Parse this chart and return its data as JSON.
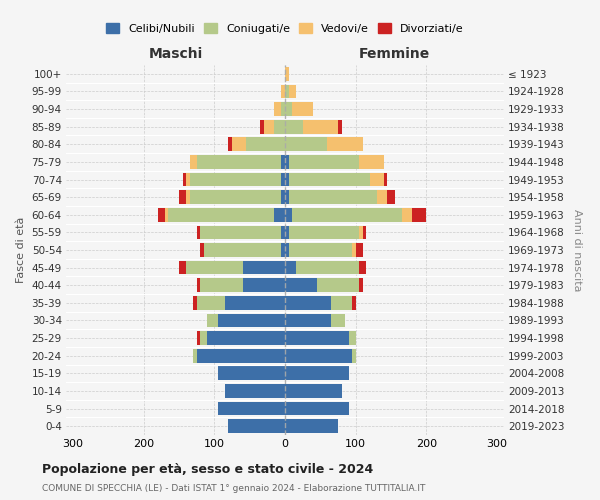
{
  "age_groups": [
    "0-4",
    "5-9",
    "10-14",
    "15-19",
    "20-24",
    "25-29",
    "30-34",
    "35-39",
    "40-44",
    "45-49",
    "50-54",
    "55-59",
    "60-64",
    "65-69",
    "70-74",
    "75-79",
    "80-84",
    "85-89",
    "90-94",
    "95-99",
    "100+"
  ],
  "birth_years": [
    "2019-2023",
    "2014-2018",
    "2009-2013",
    "2004-2008",
    "1999-2003",
    "1994-1998",
    "1989-1993",
    "1984-1988",
    "1979-1983",
    "1974-1978",
    "1969-1973",
    "1964-1968",
    "1959-1963",
    "1954-1958",
    "1949-1953",
    "1944-1948",
    "1939-1943",
    "1934-1938",
    "1929-1933",
    "1924-1928",
    "≤ 1923"
  ],
  "males": {
    "celibe": [
      80,
      95,
      85,
      95,
      125,
      110,
      95,
      85,
      60,
      60,
      5,
      5,
      15,
      5,
      5,
      5,
      0,
      0,
      0,
      0,
      0
    ],
    "coniugato": [
      0,
      0,
      0,
      0,
      5,
      10,
      15,
      40,
      60,
      80,
      110,
      115,
      150,
      130,
      130,
      120,
      55,
      15,
      5,
      0,
      0
    ],
    "vedovo": [
      0,
      0,
      0,
      0,
      0,
      0,
      0,
      0,
      0,
      0,
      0,
      0,
      5,
      5,
      5,
      10,
      20,
      15,
      10,
      5,
      0
    ],
    "divorziato": [
      0,
      0,
      0,
      0,
      0,
      5,
      0,
      5,
      5,
      10,
      5,
      5,
      10,
      10,
      5,
      0,
      5,
      5,
      0,
      0,
      0
    ]
  },
  "females": {
    "nubile": [
      75,
      90,
      80,
      90,
      95,
      90,
      65,
      65,
      45,
      15,
      5,
      5,
      10,
      5,
      5,
      5,
      0,
      0,
      0,
      0,
      0
    ],
    "coniugata": [
      0,
      0,
      0,
      0,
      5,
      10,
      20,
      30,
      60,
      90,
      90,
      100,
      155,
      125,
      115,
      100,
      60,
      25,
      10,
      5,
      0
    ],
    "vedova": [
      0,
      0,
      0,
      0,
      0,
      0,
      0,
      0,
      0,
      0,
      5,
      5,
      15,
      15,
      20,
      35,
      50,
      50,
      30,
      10,
      5
    ],
    "divorziata": [
      0,
      0,
      0,
      0,
      0,
      0,
      0,
      5,
      5,
      10,
      10,
      5,
      20,
      10,
      5,
      0,
      0,
      5,
      0,
      0,
      0
    ]
  },
  "colors": {
    "celibe_nubile": "#3d6fa8",
    "coniugato": "#b5c98a",
    "vedovo": "#f5c06e",
    "divorziato": "#cc2222"
  },
  "title": "Popolazione per età, sesso e stato civile - 2024",
  "subtitle": "COMUNE DI SPECCHIA (LE) - Dati ISTAT 1° gennaio 2024 - Elaborazione TUTTITALIA.IT",
  "xlabel_maschi": "Maschi",
  "xlabel_femmine": "Femmine",
  "ylabel_left": "Fasce di età",
  "ylabel_right": "Anni di nascita",
  "xlim": 310,
  "background_color": "#f5f5f5",
  "legend_labels": [
    "Celibi/Nubili",
    "Coniugati/e",
    "Vedovi/e",
    "Divorziati/e"
  ]
}
